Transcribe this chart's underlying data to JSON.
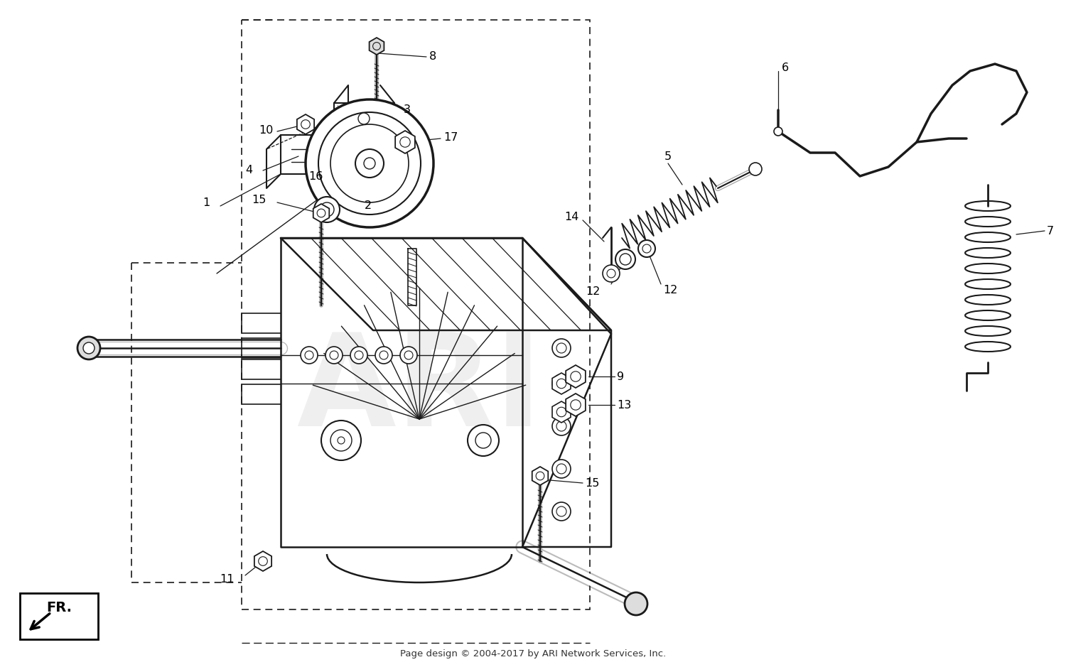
{
  "bg_color": "#ffffff",
  "lc": "#1a1a1a",
  "footer_text": "Page design © 2004-2017 by ARI Network Services, Inc.",
  "fr_label": "FR.",
  "figsize": [
    15.0,
    9.39
  ],
  "dpi": 100
}
